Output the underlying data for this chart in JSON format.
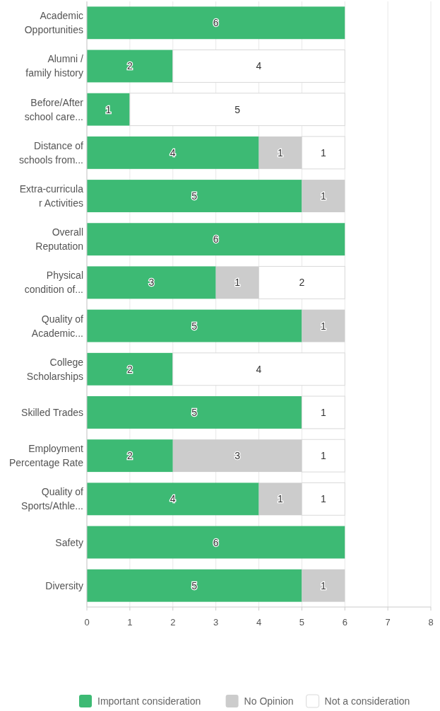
{
  "chart_data": {
    "type": "bar",
    "orientation": "horizontal",
    "stacked": true,
    "categories": [
      "Academic Opportunities",
      "Alumni / family history",
      "Before/After school care...",
      "Distance of schools from...",
      "Extra-curricular Activities",
      "Overall Reputation",
      "Physical condition of...",
      "Quality of Academic...",
      "College Scholarships",
      "Skilled Trades",
      "Employment Percentage Rate",
      "Quality of Sports/Athle...",
      "Safety",
      "Diversity"
    ],
    "series": [
      {
        "name": "Important consideration",
        "color": "#3dba74",
        "values": [
          6,
          2,
          1,
          4,
          5,
          6,
          3,
          5,
          2,
          5,
          2,
          4,
          6,
          5
        ]
      },
      {
        "name": "No Opinion",
        "color": "#cccccc",
        "values": [
          null,
          null,
          null,
          1,
          1,
          null,
          1,
          1,
          null,
          null,
          3,
          1,
          null,
          1
        ]
      },
      {
        "name": "Not a consideration",
        "color": "#ffffff",
        "values": [
          null,
          4,
          5,
          1,
          null,
          null,
          2,
          null,
          4,
          1,
          1,
          1,
          null,
          null
        ]
      }
    ],
    "xlim": [
      0,
      8
    ],
    "xticks": [
      0,
      1,
      2,
      3,
      4,
      5,
      6,
      7,
      8
    ],
    "grid": "x",
    "data_labels": true,
    "legend": "bottom"
  }
}
